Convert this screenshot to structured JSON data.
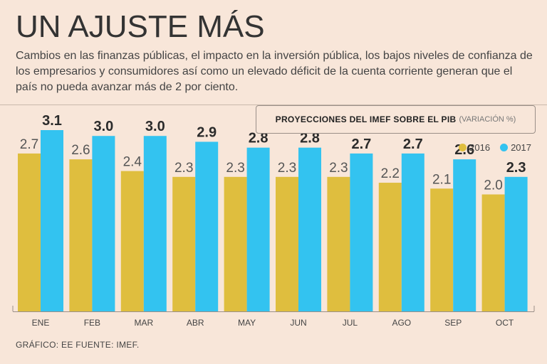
{
  "header": {
    "title": "UN AJUSTE MÁS",
    "subtitle": "Cambios en las finanzas públicas, el impacto en la inversión pública, los bajos niveles de confianza de los empresarios y consumidores así como un elevado déficit de la cuenta corriente generan que el país no pueda avanzar más de 2 por ciento."
  },
  "legend": {
    "title": "PROYECCIONES DEL IMEF SOBRE EL PIB",
    "unit": "(VARIACIÓN %)"
  },
  "footer": {
    "credit": "GRÁFICO: EE  FUENTE: IMEF."
  },
  "chart_data": {
    "type": "bar",
    "categories": [
      "ENE",
      "FEB",
      "MAR",
      "ABR",
      "MAY",
      "JUN",
      "JUL",
      "AGO",
      "SEP",
      "OCT"
    ],
    "series": [
      {
        "name": "2016",
        "color": "#dfbe3e",
        "values": [
          2.7,
          2.6,
          2.4,
          2.3,
          2.3,
          2.3,
          2.3,
          2.2,
          2.1,
          2.0
        ]
      },
      {
        "name": "2017",
        "color": "#33c3f0",
        "values": [
          3.1,
          3.0,
          3.0,
          2.9,
          2.8,
          2.8,
          2.7,
          2.7,
          2.6,
          2.3
        ]
      }
    ],
    "ylim": [
      0,
      3.1
    ],
    "grid": false,
    "legend_position": "top-right"
  }
}
